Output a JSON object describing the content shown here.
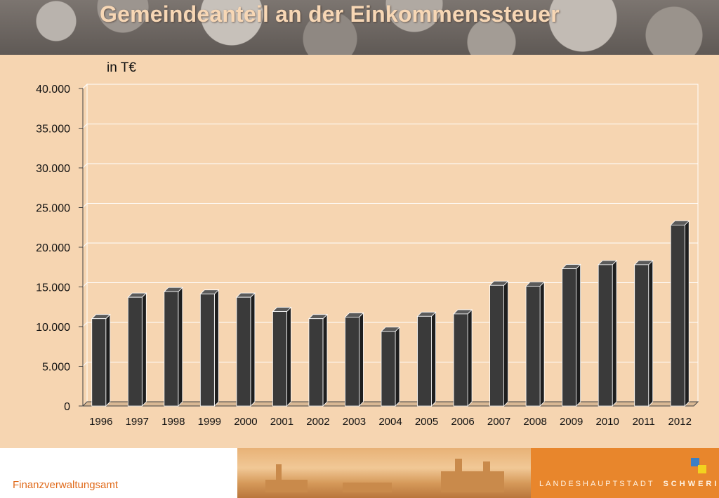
{
  "title": "Gemeindeanteil an der Einkommenssteuer",
  "unit_label": "in T€",
  "footer": {
    "department": "Finanzverwaltungsamt",
    "logo_prefix": "LANDESHAUPTSTADT",
    "logo_city": "SCHWERIN"
  },
  "colors": {
    "background": "#f6d5b1",
    "bar_front": "#3a3a3a",
    "bar_side": "#1e1e1e",
    "bar_top": "#5a5a5a",
    "accent": "#e8862c"
  },
  "chart_data": {
    "type": "bar",
    "title": "",
    "xlabel": "",
    "ylabel": "",
    "categories": [
      "1996",
      "1997",
      "1998",
      "1999",
      "2000",
      "2001",
      "2002",
      "2003",
      "2004",
      "2005",
      "2006",
      "2007",
      "2008",
      "2009",
      "2010",
      "2011",
      "2012"
    ],
    "values": [
      11000,
      13700,
      14400,
      14100,
      13700,
      11900,
      11000,
      11200,
      9400,
      11300,
      11600,
      15200,
      15100,
      17300,
      17800,
      17800,
      22800
    ],
    "ylim": [
      0,
      40000
    ],
    "yticks": [
      0,
      5000,
      10000,
      15000,
      20000,
      25000,
      30000,
      35000,
      40000
    ],
    "ytick_labels": [
      "0",
      "5.000",
      "10.000",
      "15.000",
      "20.000",
      "25.000",
      "30.000",
      "35.000",
      "40.000"
    ],
    "grid": true,
    "style": "3d-column"
  }
}
